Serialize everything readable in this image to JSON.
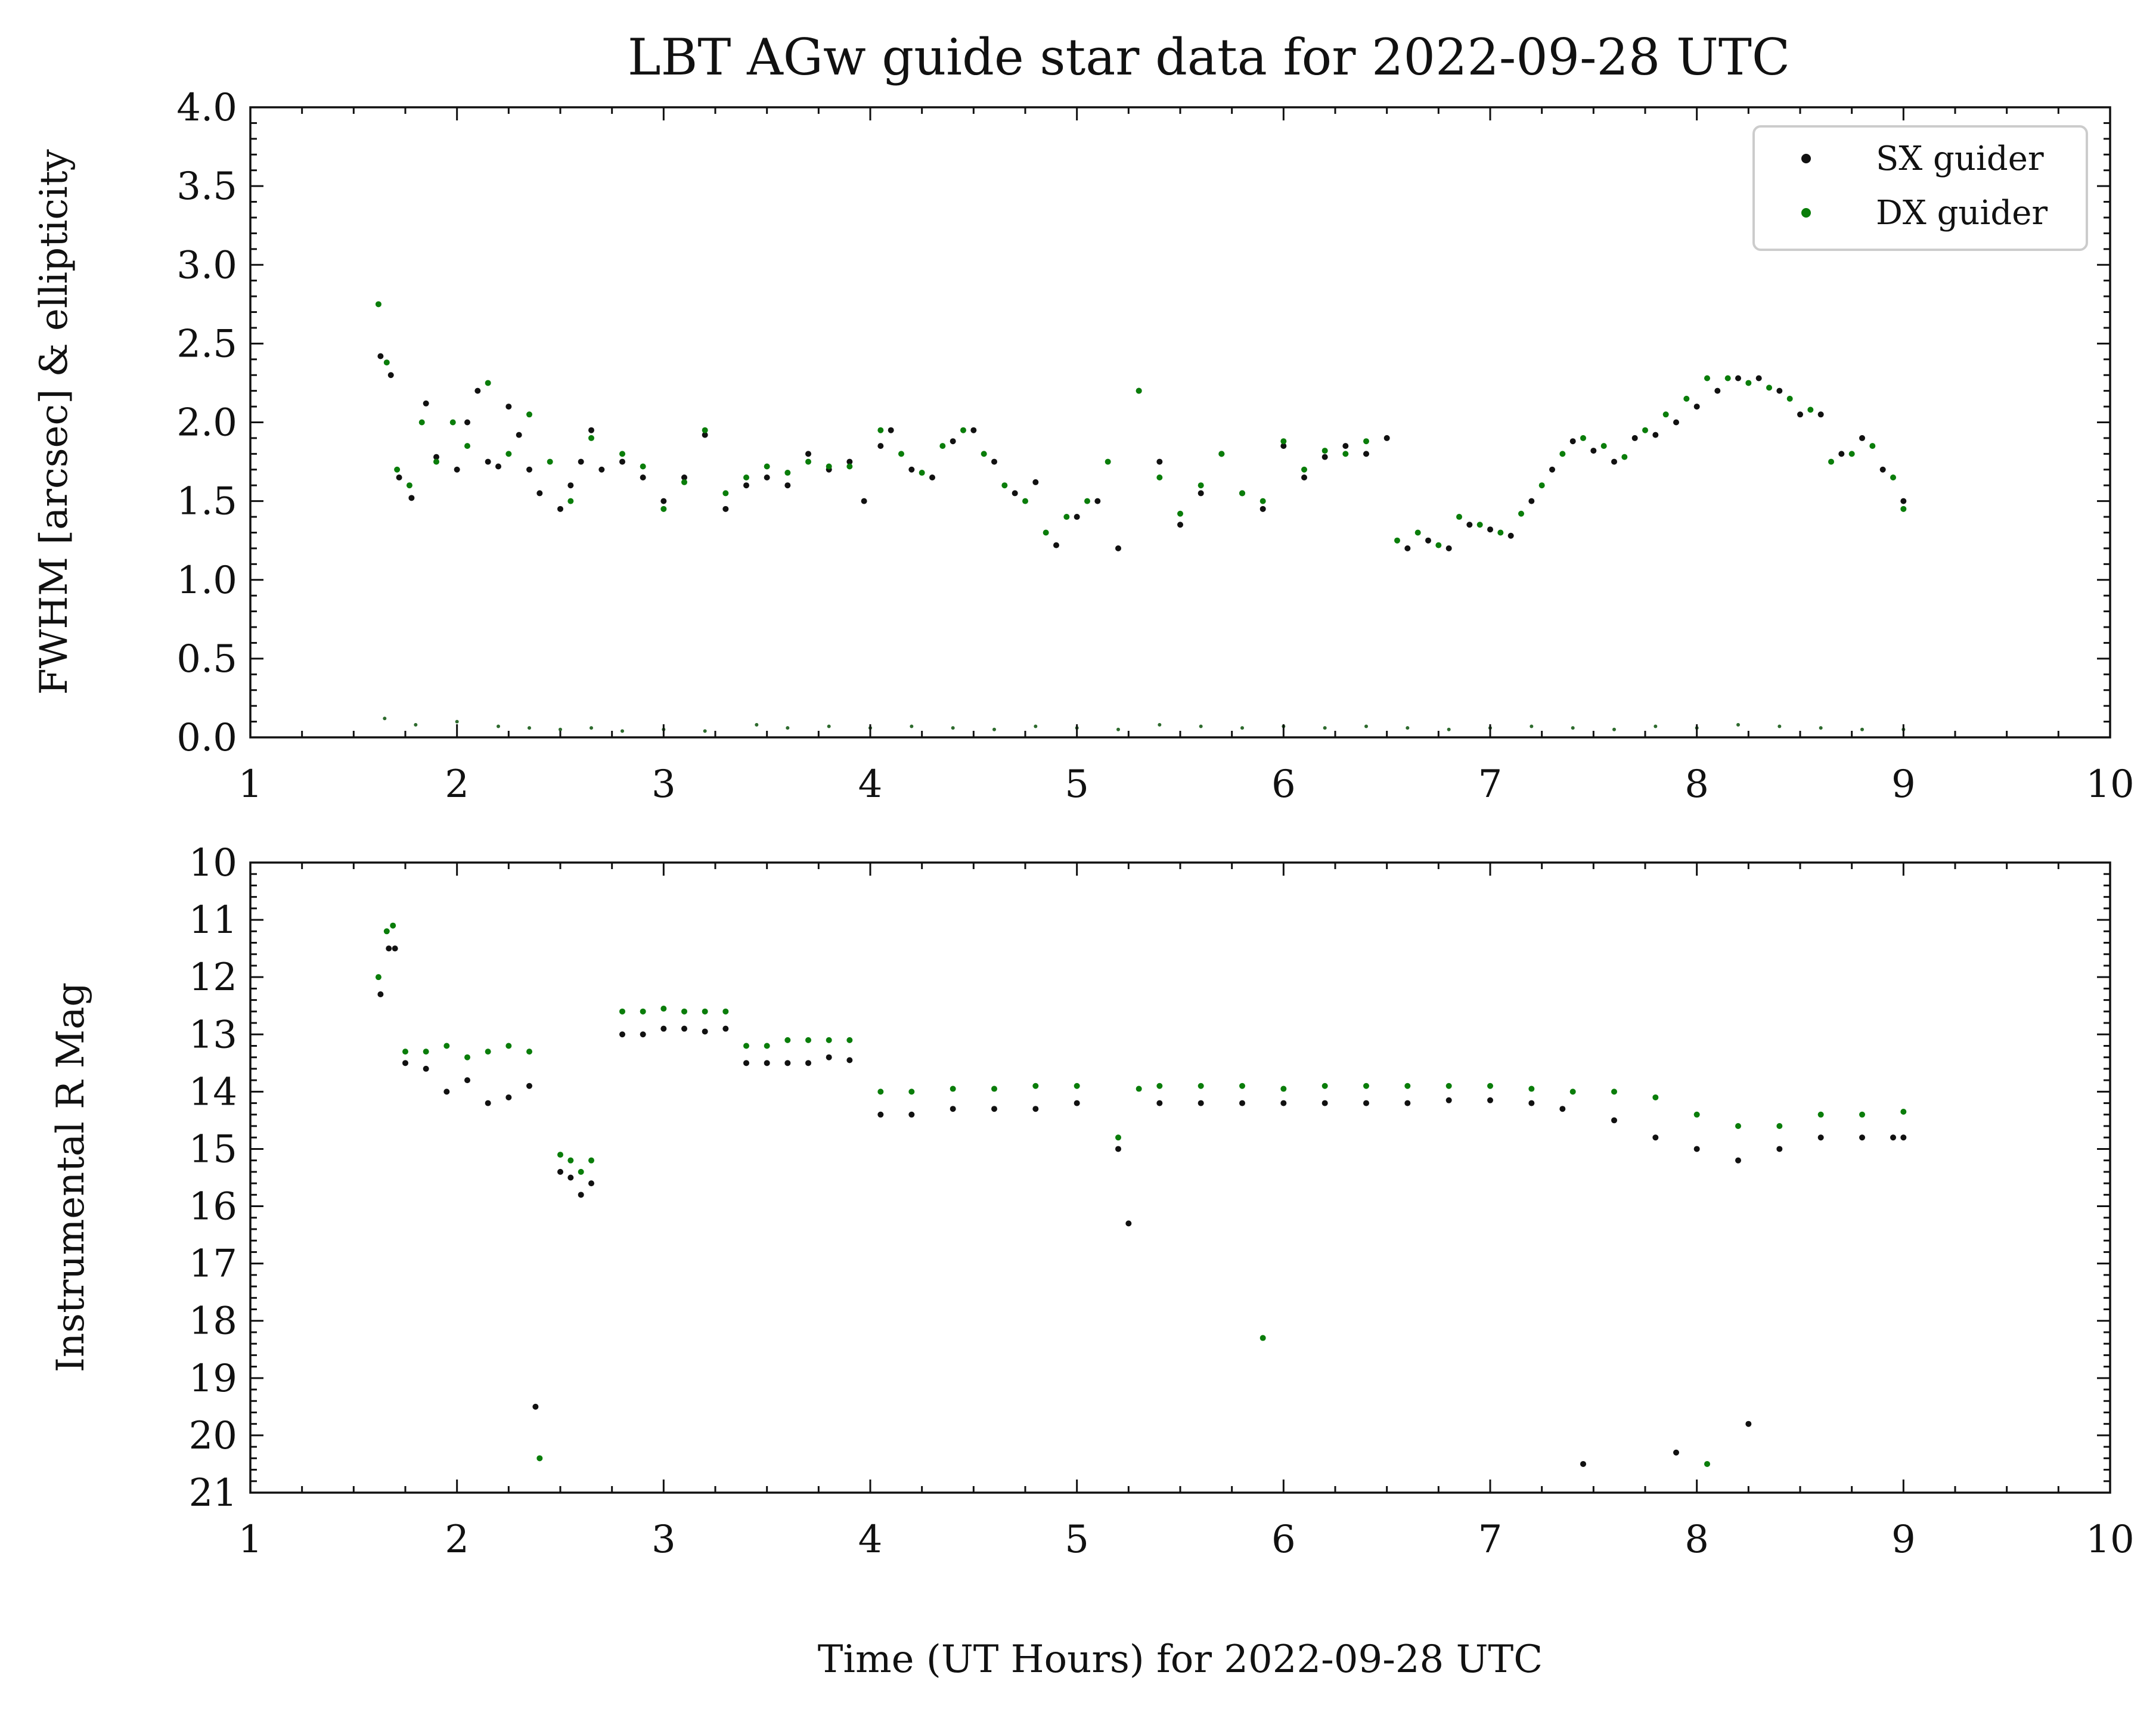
{
  "chart_data": [
    {
      "type": "scatter",
      "title": "LBT AGw guide star data for 2022-09-28 UTC",
      "xlabel": "",
      "ylabel": "FWHM [arcsec] & ellipticity",
      "xlim": [
        1,
        10
      ],
      "ylim": [
        0.0,
        4.0
      ],
      "x_ticks": [
        "1",
        "2",
        "3",
        "4",
        "5",
        "6",
        "7",
        "8",
        "9",
        "10"
      ],
      "y_ticks": [
        "0.0",
        "0.5",
        "1.0",
        "1.5",
        "2.0",
        "2.5",
        "3.0",
        "3.5",
        "4.0"
      ],
      "legend": {
        "placement": "top-right",
        "entries": [
          "SX guider",
          "DX guider"
        ]
      },
      "series": [
        {
          "name": "SX guider",
          "color": "#111111",
          "x": [
            1.63,
            1.68,
            1.72,
            1.78,
            1.85,
            1.9,
            2.0,
            2.05,
            2.1,
            2.15,
            2.2,
            2.25,
            2.3,
            2.35,
            2.4,
            2.5,
            2.55,
            2.6,
            2.65,
            2.7,
            2.8,
            2.9,
            3.0,
            3.1,
            3.2,
            3.3,
            3.4,
            3.5,
            3.6,
            3.7,
            3.8,
            3.9,
            3.97,
            4.05,
            4.1,
            4.2,
            4.3,
            4.4,
            4.5,
            4.6,
            4.7,
            4.8,
            4.9,
            5.0,
            5.1,
            5.2,
            5.3,
            5.4,
            5.5,
            5.6,
            5.7,
            5.8,
            5.9,
            6.0,
            6.1,
            6.2,
            6.3,
            6.4,
            6.5,
            6.6,
            6.7,
            6.8,
            6.9,
            7.0,
            7.1,
            7.2,
            7.3,
            7.4,
            7.5,
            7.6,
            7.7,
            7.8,
            7.9,
            8.0,
            8.1,
            8.2,
            8.3,
            8.4,
            8.5,
            8.6,
            8.7,
            8.8,
            8.9,
            9.0
          ],
          "y": [
            2.42,
            2.3,
            1.65,
            1.52,
            2.12,
            1.78,
            1.7,
            2.0,
            2.2,
            1.75,
            1.72,
            2.1,
            1.92,
            1.7,
            1.55,
            1.45,
            1.6,
            1.75,
            1.95,
            1.7,
            1.75,
            1.65,
            1.5,
            1.65,
            1.92,
            1.45,
            1.6,
            1.65,
            1.6,
            1.8,
            1.7,
            1.75,
            1.5,
            1.85,
            1.95,
            1.7,
            1.65,
            1.88,
            1.95,
            1.75,
            1.55,
            1.62,
            1.22,
            1.4,
            1.5,
            1.2,
            2.2,
            1.75,
            1.35,
            1.55,
            1.8,
            1.55,
            1.45,
            1.85,
            1.65,
            1.78,
            1.85,
            1.8,
            1.9,
            1.2,
            1.25,
            1.2,
            1.35,
            1.32,
            1.28,
            1.5,
            1.7,
            1.88,
            1.82,
            1.75,
            1.9,
            1.92,
            2.0,
            2.1,
            2.2,
            2.28,
            2.28,
            2.2,
            2.05,
            2.05,
            1.8,
            1.9,
            1.7,
            1.5
          ]
        },
        {
          "name": "DX guider",
          "color": "#0a7d0a",
          "x": [
            1.62,
            1.66,
            1.71,
            1.77,
            1.83,
            1.9,
            1.98,
            2.05,
            2.15,
            2.25,
            2.35,
            2.45,
            2.55,
            2.65,
            2.8,
            2.9,
            3.0,
            3.1,
            3.2,
            3.3,
            3.4,
            3.5,
            3.6,
            3.7,
            3.8,
            3.9,
            4.05,
            4.15,
            4.25,
            4.35,
            4.45,
            4.55,
            4.65,
            4.75,
            4.85,
            4.95,
            5.05,
            5.15,
            5.3,
            5.4,
            5.5,
            5.6,
            5.7,
            5.8,
            5.9,
            6.0,
            6.1,
            6.2,
            6.3,
            6.4,
            6.55,
            6.65,
            6.75,
            6.85,
            6.95,
            7.05,
            7.15,
            7.25,
            7.35,
            7.45,
            7.55,
            7.65,
            7.75,
            7.85,
            7.95,
            8.05,
            8.15,
            8.25,
            8.35,
            8.45,
            8.55,
            8.65,
            8.75,
            8.85,
            8.95,
            9.0
          ],
          "y": [
            2.75,
            2.38,
            1.7,
            1.6,
            2.0,
            1.75,
            2.0,
            1.85,
            2.25,
            1.8,
            2.05,
            1.75,
            1.5,
            1.9,
            1.8,
            1.72,
            1.45,
            1.62,
            1.95,
            1.55,
            1.65,
            1.72,
            1.68,
            1.75,
            1.72,
            1.72,
            1.95,
            1.8,
            1.68,
            1.85,
            1.95,
            1.8,
            1.6,
            1.5,
            1.3,
            1.4,
            1.5,
            1.75,
            2.2,
            1.65,
            1.42,
            1.6,
            1.8,
            1.55,
            1.5,
            1.88,
            1.7,
            1.82,
            1.8,
            1.88,
            1.25,
            1.3,
            1.22,
            1.4,
            1.35,
            1.3,
            1.42,
            1.6,
            1.8,
            1.9,
            1.85,
            1.78,
            1.95,
            2.05,
            2.15,
            2.28,
            2.28,
            2.25,
            2.22,
            2.15,
            2.08,
            1.75,
            1.8,
            1.85,
            1.65,
            1.45
          ]
        },
        {
          "name": "",
          "color": "#2e6b2e",
          "note_on_series": "",
          "x": [
            1.65,
            1.8,
            2.0,
            2.2,
            2.35,
            2.5,
            2.65,
            2.8,
            3.0,
            3.2,
            3.45,
            3.6,
            3.8,
            4.0,
            4.2,
            4.4,
            4.6,
            4.8,
            5.0,
            5.2,
            5.4,
            5.6,
            5.8,
            6.0,
            6.2,
            6.4,
            6.6,
            6.8,
            7.0,
            7.2,
            7.4,
            7.6,
            7.8,
            8.0,
            8.2,
            8.4,
            8.6,
            8.8,
            9.0
          ],
          "y": [
            0.12,
            0.08,
            0.1,
            0.07,
            0.06,
            0.05,
            0.06,
            0.04,
            0.05,
            0.04,
            0.08,
            0.06,
            0.07,
            0.06,
            0.07,
            0.06,
            0.05,
            0.07,
            0.06,
            0.05,
            0.08,
            0.07,
            0.06,
            0.07,
            0.06,
            0.07,
            0.06,
            0.05,
            0.06,
            0.07,
            0.06,
            0.05,
            0.07,
            0.06,
            0.08,
            0.07,
            0.06,
            0.05,
            0.05
          ]
        }
      ]
    },
    {
      "type": "scatter",
      "title": "",
      "xlabel": "Time (UT Hours) for 2022-09-28 UTC",
      "ylabel": "Instrumental R Mag",
      "xlim": [
        1,
        10
      ],
      "ylim": [
        21,
        10
      ],
      "y_inverted": true,
      "x_ticks": [
        "1",
        "2",
        "3",
        "4",
        "5",
        "6",
        "7",
        "8",
        "9",
        "10"
      ],
      "y_ticks": [
        "10",
        "11",
        "12",
        "13",
        "14",
        "15",
        "16",
        "17",
        "18",
        "19",
        "20",
        "21"
      ],
      "series": [
        {
          "name": "SX guider",
          "color": "#111111",
          "x": [
            1.63,
            1.67,
            1.7,
            1.75,
            1.85,
            1.95,
            2.05,
            2.15,
            2.25,
            2.35,
            2.38,
            2.5,
            2.55,
            2.6,
            2.65,
            2.8,
            2.9,
            3.0,
            3.1,
            3.2,
            3.3,
            3.4,
            3.5,
            3.6,
            3.7,
            3.8,
            3.9,
            4.05,
            4.2,
            4.4,
            4.6,
            4.8,
            5.0,
            5.2,
            5.25,
            5.4,
            5.6,
            5.8,
            6.0,
            6.2,
            6.4,
            6.6,
            6.8,
            7.0,
            7.2,
            7.35,
            7.45,
            7.6,
            7.8,
            7.9,
            8.0,
            8.2,
            8.25,
            8.4,
            8.6,
            8.8,
            8.95,
            9.0
          ],
          "y": [
            12.3,
            11.5,
            11.5,
            13.5,
            13.6,
            14.0,
            13.8,
            14.2,
            14.1,
            13.9,
            19.5,
            15.4,
            15.5,
            15.8,
            15.6,
            13.0,
            13.0,
            12.9,
            12.9,
            12.95,
            12.9,
            13.5,
            13.5,
            13.5,
            13.5,
            13.4,
            13.45,
            14.4,
            14.4,
            14.3,
            14.3,
            14.3,
            14.2,
            15.0,
            16.3,
            14.2,
            14.2,
            14.2,
            14.2,
            14.2,
            14.2,
            14.2,
            14.15,
            14.15,
            14.2,
            14.3,
            20.5,
            14.5,
            14.8,
            20.3,
            15.0,
            15.2,
            19.8,
            15.0,
            14.8,
            14.8,
            14.8,
            14.8
          ]
        },
        {
          "name": "DX guider",
          "color": "#0a7d0a",
          "x": [
            1.62,
            1.66,
            1.69,
            1.75,
            1.85,
            1.95,
            2.05,
            2.15,
            2.25,
            2.35,
            2.4,
            2.5,
            2.55,
            2.6,
            2.65,
            2.8,
            2.9,
            3.0,
            3.1,
            3.2,
            3.3,
            3.4,
            3.5,
            3.6,
            3.7,
            3.8,
            3.9,
            4.05,
            4.2,
            4.4,
            4.6,
            4.8,
            5.0,
            5.2,
            5.3,
            5.4,
            5.6,
            5.8,
            5.9,
            6.0,
            6.2,
            6.4,
            6.6,
            6.8,
            7.0,
            7.2,
            7.4,
            7.6,
            7.8,
            8.0,
            8.05,
            8.2,
            8.4,
            8.6,
            8.8,
            9.0
          ],
          "y": [
            12.0,
            11.2,
            11.1,
            13.3,
            13.3,
            13.2,
            13.4,
            13.3,
            13.2,
            13.3,
            20.4,
            15.1,
            15.2,
            15.4,
            15.2,
            12.6,
            12.6,
            12.55,
            12.6,
            12.6,
            12.6,
            13.2,
            13.2,
            13.1,
            13.1,
            13.1,
            13.1,
            14.0,
            14.0,
            13.95,
            13.95,
            13.9,
            13.9,
            14.8,
            13.95,
            13.9,
            13.9,
            13.9,
            18.3,
            13.95,
            13.9,
            13.9,
            13.9,
            13.9,
            13.9,
            13.95,
            14.0,
            14.0,
            14.1,
            14.4,
            20.5,
            14.6,
            14.6,
            14.4,
            14.4,
            14.35
          ]
        }
      ]
    }
  ]
}
